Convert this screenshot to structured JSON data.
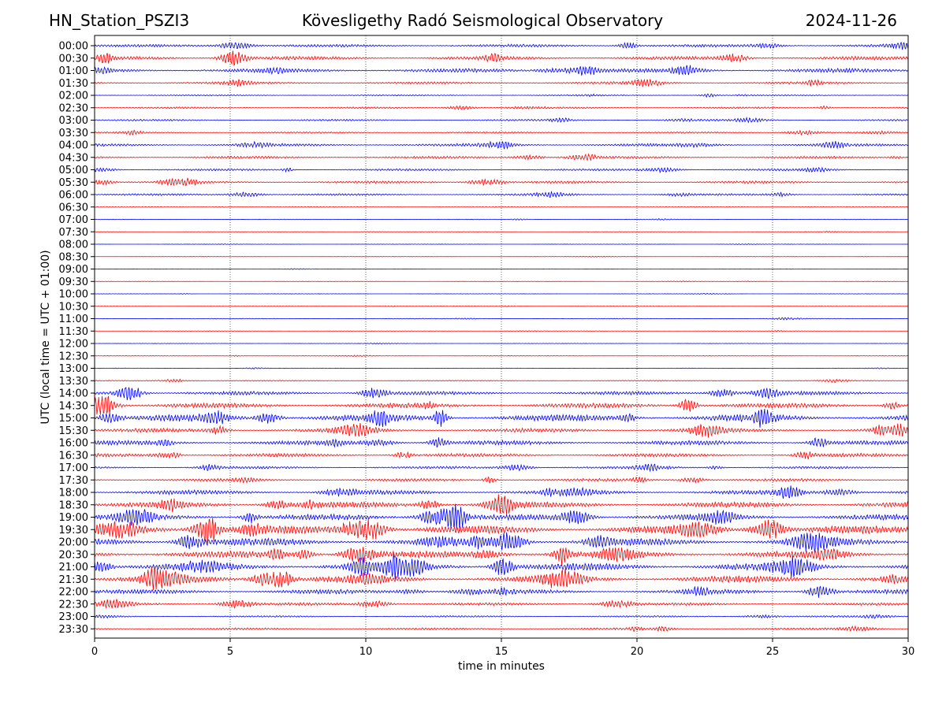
{
  "header": {
    "left": "HN_Station_PSZI3",
    "center": "Kövesligethy Radó Seismological Observatory",
    "right": "2024-11-26"
  },
  "chart_data": {
    "type": "line",
    "title": "Kövesligethy Radó Seismological Observatory",
    "xlabel": "time in minutes",
    "ylabel": "UTC (local time = UTC + 01:00)",
    "xlim": [
      0,
      30
    ],
    "xticks": [
      0,
      5,
      10,
      15,
      20,
      25,
      30
    ],
    "xgrid": "dotted vertical at 5-minute intervals",
    "row_labels": [
      "00:00",
      "00:30",
      "01:00",
      "01:30",
      "02:00",
      "02:30",
      "03:00",
      "03:30",
      "04:00",
      "04:30",
      "05:00",
      "05:30",
      "06:00",
      "06:30",
      "07:00",
      "07:30",
      "08:00",
      "08:30",
      "09:00",
      "09:30",
      "10:00",
      "10:30",
      "11:00",
      "11:30",
      "12:00",
      "12:30",
      "13:00",
      "13:30",
      "14:00",
      "14:30",
      "15:00",
      "15:30",
      "16:00",
      "16:30",
      "17:00",
      "17:30",
      "18:00",
      "18:30",
      "19:00",
      "19:30",
      "20:00",
      "20:30",
      "21:00",
      "21:30",
      "22:00",
      "22:30",
      "23:00",
      "23:30"
    ],
    "trace_colors": [
      "#0000ff",
      "#ff0000"
    ],
    "relative_amplitude": [
      0.35,
      0.45,
      0.5,
      0.3,
      0.15,
      0.2,
      0.22,
      0.2,
      0.35,
      0.3,
      0.25,
      0.3,
      0.25,
      0.08,
      0.06,
      0.05,
      0.04,
      0.04,
      0.04,
      0.04,
      0.04,
      0.05,
      0.08,
      0.05,
      0.05,
      0.06,
      0.06,
      0.12,
      0.45,
      0.6,
      0.85,
      0.5,
      0.55,
      0.45,
      0.3,
      0.35,
      0.55,
      0.7,
      0.75,
      1.0,
      0.9,
      0.85,
      0.9,
      0.85,
      0.55,
      0.35,
      0.2,
      0.25
    ]
  }
}
